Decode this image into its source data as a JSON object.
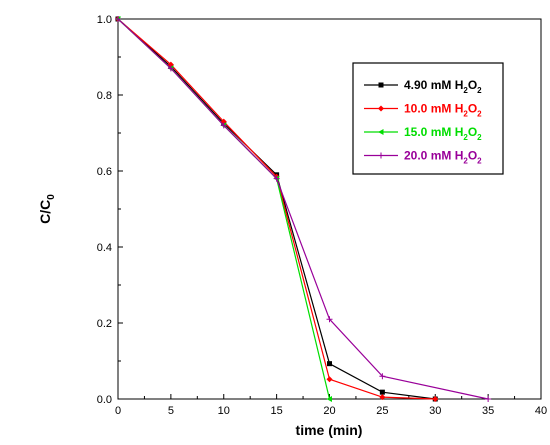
{
  "chart_data": {
    "type": "line",
    "xlabel": "time (min)",
    "ylabel_main": "C/C",
    "ylabel_sub": "0",
    "xlim": [
      0,
      40
    ],
    "ylim": [
      0,
      1.0
    ],
    "xticks": [
      0,
      5,
      10,
      15,
      20,
      25,
      30,
      35,
      40
    ],
    "xtick_labels": [
      "0",
      "5",
      "10",
      "15",
      "20",
      "25",
      "30",
      "35",
      "40"
    ],
    "yticks": [
      0,
      0.2,
      0.4,
      0.6,
      0.8,
      1.0
    ],
    "ytick_labels": [
      "0.0",
      "0.2",
      "0.4",
      "0.6",
      "0.8",
      "1.0"
    ],
    "grid": false,
    "legend_position": "top-right",
    "series": [
      {
        "name": "4.90 mM H2O2",
        "label_main": "4.90 mM H",
        "label_sub1": "2",
        "label_mid": "O",
        "label_sub2": "2",
        "color": "#000000",
        "marker": "square",
        "x": [
          0,
          5,
          10,
          15,
          20,
          25,
          30
        ],
        "y": [
          1.0,
          0.875,
          0.725,
          0.59,
          0.093,
          0.018,
          0.0
        ]
      },
      {
        "name": "10.0 mM H2O2",
        "label_main": "10.0 mM H",
        "label_sub1": "2",
        "label_mid": "O",
        "label_sub2": "2",
        "color": "#ff0000",
        "marker": "diamond",
        "x": [
          0,
          5,
          10,
          15,
          20,
          25,
          30
        ],
        "y": [
          1.0,
          0.88,
          0.73,
          0.585,
          0.052,
          0.005,
          0.0
        ]
      },
      {
        "name": "15.0 mM H2O2",
        "label_main": "15.0 mM H",
        "label_sub1": "2",
        "label_mid": "O",
        "label_sub2": "2",
        "color": "#00dd00",
        "marker": "triangle-left",
        "x": [
          0,
          5,
          10,
          15,
          20
        ],
        "y": [
          1.0,
          0.87,
          0.72,
          0.58,
          0.0
        ]
      },
      {
        "name": "20.0 mM H2O2",
        "label_main": "20.0 mM H",
        "label_sub1": "2",
        "label_mid": "O",
        "label_sub2": "2",
        "color": "#990099",
        "marker": "plus",
        "x": [
          0,
          5,
          10,
          15,
          20,
          25,
          35
        ],
        "y": [
          1.0,
          0.87,
          0.72,
          0.58,
          0.21,
          0.06,
          0.0
        ]
      }
    ]
  }
}
